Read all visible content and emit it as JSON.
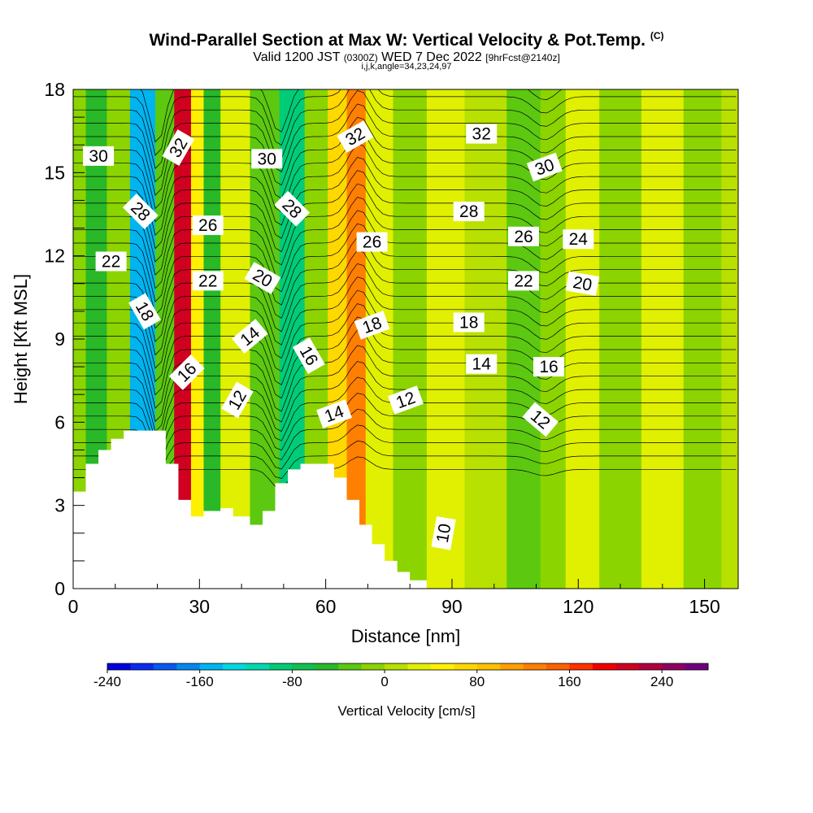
{
  "header": {
    "title": "Wind-Parallel Section at Max W: Vertical Velocity & Pot.Temp.",
    "copyright": "(C)",
    "valid_prefix": "Valid 1200 JST",
    "valid_utc": "(0300Z)",
    "valid_date": "WED 7 Dec 2022",
    "forecast": "[9hrFcst@2140z]",
    "grid": "i,j,k,angle=34,23,24,97"
  },
  "chart_data": {
    "type": "heatmap",
    "xlabel": "Distance [nm]",
    "ylabel": "Height [Kft MSL]",
    "xlim": [
      0,
      158
    ],
    "ylim": [
      0,
      18
    ],
    "x_ticks": [
      0,
      30,
      60,
      90,
      120,
      150
    ],
    "y_ticks": [
      0,
      3,
      6,
      9,
      12,
      15,
      18
    ],
    "colorbar": {
      "label": "Vertical Velocity [cm/s]",
      "min": -240,
      "max": 280,
      "step": 20,
      "tick_values": [
        -240,
        -160,
        -80,
        0,
        80,
        160,
        240
      ],
      "tick_labels": [
        "-240",
        "-160",
        "-80",
        "0",
        "80",
        "160",
        "240"
      ],
      "colors": [
        "#0000e0",
        "#0a2cf0",
        "#0a58f0",
        "#0088f0",
        "#00b4f0",
        "#00d8e0",
        "#00d8b0",
        "#00cc78",
        "#10c050",
        "#28b828",
        "#5cc810",
        "#8cd400",
        "#b8e000",
        "#e0f000",
        "#fff000",
        "#ffd800",
        "#ffc000",
        "#ffa000",
        "#ff8000",
        "#ff6000",
        "#ff3000",
        "#f00000",
        "#d00020",
        "#b00040",
        "#900060",
        "#700080"
      ]
    },
    "velocity_bands": [
      {
        "x": 0,
        "value": -20
      },
      {
        "x": 6,
        "value": -60
      },
      {
        "x": 10,
        "value": -20
      },
      {
        "x": 17,
        "value": -160
      },
      {
        "x": 22,
        "value": -40
      },
      {
        "x": 26,
        "value": 200
      },
      {
        "x": 30,
        "value": 40
      },
      {
        "x": 32,
        "value": -60
      },
      {
        "x": 38,
        "value": 20
      },
      {
        "x": 46,
        "value": -40
      },
      {
        "x": 52,
        "value": -100
      },
      {
        "x": 58,
        "value": -20
      },
      {
        "x": 63,
        "value": 60
      },
      {
        "x": 67,
        "value": 120
      },
      {
        "x": 72,
        "value": 20
      },
      {
        "x": 80,
        "value": -10
      },
      {
        "x": 88,
        "value": 20
      },
      {
        "x": 98,
        "value": 0
      },
      {
        "x": 108,
        "value": -40
      },
      {
        "x": 114,
        "value": -20
      },
      {
        "x": 120,
        "value": 20
      },
      {
        "x": 130,
        "value": -20
      },
      {
        "x": 140,
        "value": 20
      },
      {
        "x": 150,
        "value": -10
      },
      {
        "x": 158,
        "value": 0
      }
    ],
    "terrain": [
      [
        0,
        3.5
      ],
      [
        3,
        4.5
      ],
      [
        6,
        5
      ],
      [
        9,
        5.4
      ],
      [
        12,
        5.7
      ],
      [
        15,
        5.7
      ],
      [
        21,
        5.7
      ],
      [
        22,
        4.5
      ],
      [
        25,
        3.2
      ],
      [
        28,
        2.6
      ],
      [
        31,
        2.8
      ],
      [
        35,
        2.9
      ],
      [
        38,
        2.6
      ],
      [
        42,
        2.3
      ],
      [
        45,
        2.8
      ],
      [
        48,
        3.8
      ],
      [
        51,
        4.3
      ],
      [
        54,
        4.5
      ],
      [
        60,
        4.5
      ],
      [
        62,
        4.0
      ],
      [
        65,
        3.2
      ],
      [
        68,
        2.3
      ],
      [
        71,
        1.6
      ],
      [
        74,
        1.0
      ],
      [
        77,
        0.6
      ],
      [
        80,
        0.3
      ],
      [
        84,
        0.3
      ]
    ],
    "theta_labels": [
      {
        "text": "30",
        "x": 6,
        "y": 15.6,
        "angle": 0
      },
      {
        "text": "32",
        "x": 25,
        "y": 15.9,
        "angle": -60
      },
      {
        "text": "28",
        "x": 16,
        "y": 13.6,
        "angle": 45
      },
      {
        "text": "26",
        "x": 32,
        "y": 13.1,
        "angle": 0
      },
      {
        "text": "22",
        "x": 9,
        "y": 11.8,
        "angle": 0
      },
      {
        "text": "22",
        "x": 32,
        "y": 11.1,
        "angle": 0
      },
      {
        "text": "20",
        "x": 45,
        "y": 11.2,
        "angle": 30
      },
      {
        "text": "18",
        "x": 17,
        "y": 10.0,
        "angle": 60
      },
      {
        "text": "16",
        "x": 27,
        "y": 7.8,
        "angle": -45
      },
      {
        "text": "14",
        "x": 42,
        "y": 9.1,
        "angle": -40
      },
      {
        "text": "12",
        "x": 39,
        "y": 6.8,
        "angle": -60
      },
      {
        "text": "30",
        "x": 46,
        "y": 15.5,
        "angle": 0
      },
      {
        "text": "28",
        "x": 52,
        "y": 13.7,
        "angle": 45
      },
      {
        "text": "16",
        "x": 56,
        "y": 8.4,
        "angle": 60
      },
      {
        "text": "14",
        "x": 62,
        "y": 6.3,
        "angle": -20
      },
      {
        "text": "32",
        "x": 67,
        "y": 16.3,
        "angle": -30
      },
      {
        "text": "26",
        "x": 71,
        "y": 12.5,
        "angle": 0
      },
      {
        "text": "18",
        "x": 71,
        "y": 9.5,
        "angle": -20
      },
      {
        "text": "12",
        "x": 79,
        "y": 6.8,
        "angle": -20
      },
      {
        "text": "32",
        "x": 97,
        "y": 16.4,
        "angle": 0
      },
      {
        "text": "30",
        "x": 112,
        "y": 15.2,
        "angle": -20
      },
      {
        "text": "28",
        "x": 94,
        "y": 13.6,
        "angle": 0
      },
      {
        "text": "26",
        "x": 107,
        "y": 12.7,
        "angle": 0
      },
      {
        "text": "24",
        "x": 120,
        "y": 12.6,
        "angle": 0
      },
      {
        "text": "22",
        "x": 107,
        "y": 11.1,
        "angle": 0
      },
      {
        "text": "20",
        "x": 121,
        "y": 11.0,
        "angle": 10
      },
      {
        "text": "18",
        "x": 94,
        "y": 9.6,
        "angle": 0
      },
      {
        "text": "14",
        "x": 97,
        "y": 8.1,
        "angle": 0
      },
      {
        "text": "16",
        "x": 113,
        "y": 8.0,
        "angle": 0
      },
      {
        "text": "12",
        "x": 111,
        "y": 6.1,
        "angle": 40
      },
      {
        "text": "10",
        "x": 88,
        "y": 2.0,
        "angle": -80
      }
    ]
  }
}
